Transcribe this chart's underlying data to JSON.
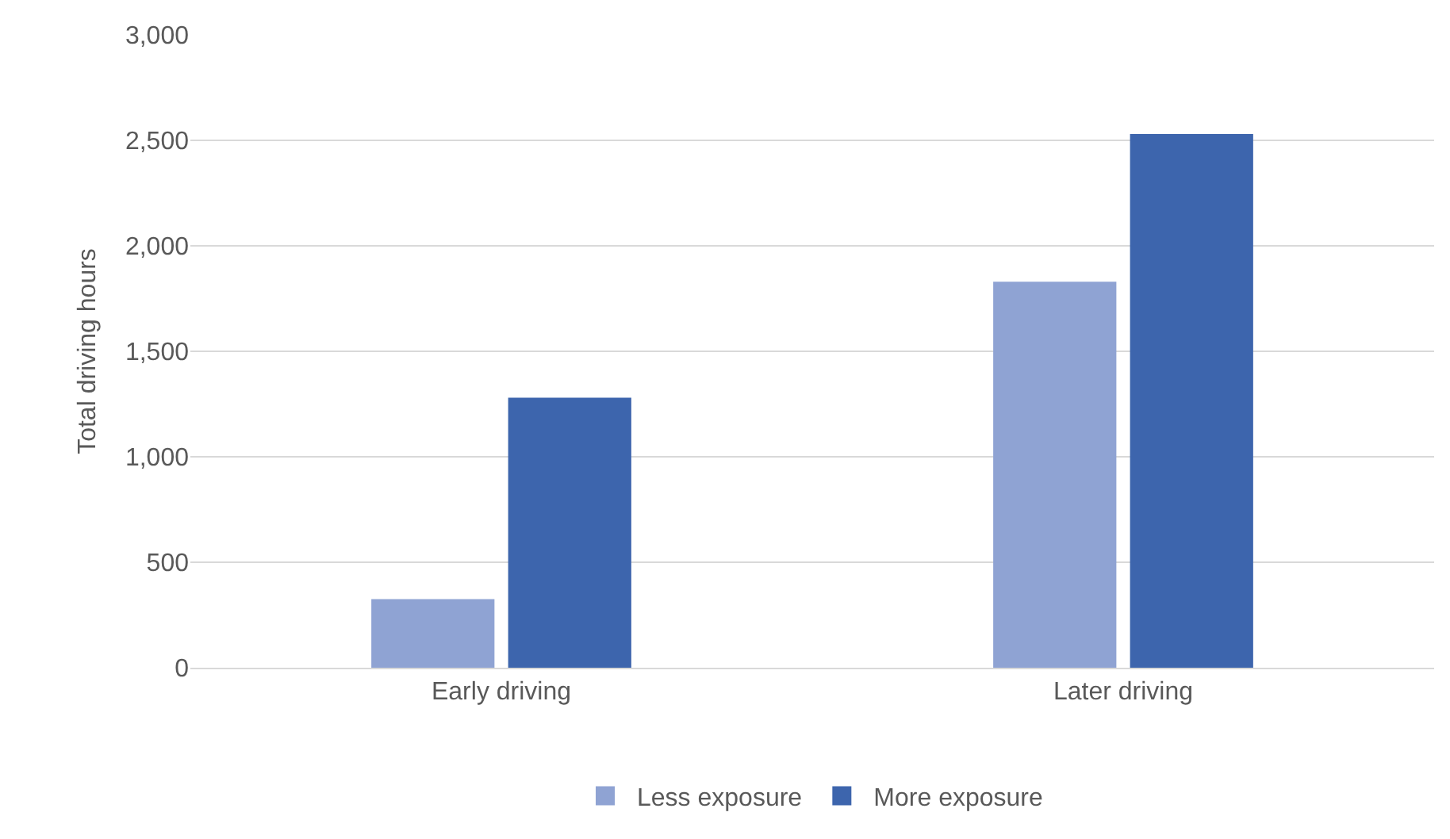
{
  "chart_data": {
    "type": "bar",
    "ylabel": "Total driving hours",
    "categories": [
      "Early driving",
      "Later driving"
    ],
    "series": [
      {
        "name": "Less exposure",
        "color": "#8fa3d3",
        "values": [
          325,
          1830
        ]
      },
      {
        "name": "More exposure",
        "color": "#3d65ad",
        "values": [
          1280,
          2530
        ]
      }
    ],
    "ylim": [
      0,
      3000
    ],
    "yticks": [
      {
        "value": 0,
        "label": "0"
      },
      {
        "value": 500,
        "label": "500"
      },
      {
        "value": 1000,
        "label": "1,000"
      },
      {
        "value": 1500,
        "label": "1,500"
      },
      {
        "value": 2000,
        "label": "2,000"
      },
      {
        "value": 2500,
        "label": "2,500"
      },
      {
        "value": 3000,
        "label": "3,000"
      }
    ],
    "grid": "y",
    "legend": "bottom"
  }
}
